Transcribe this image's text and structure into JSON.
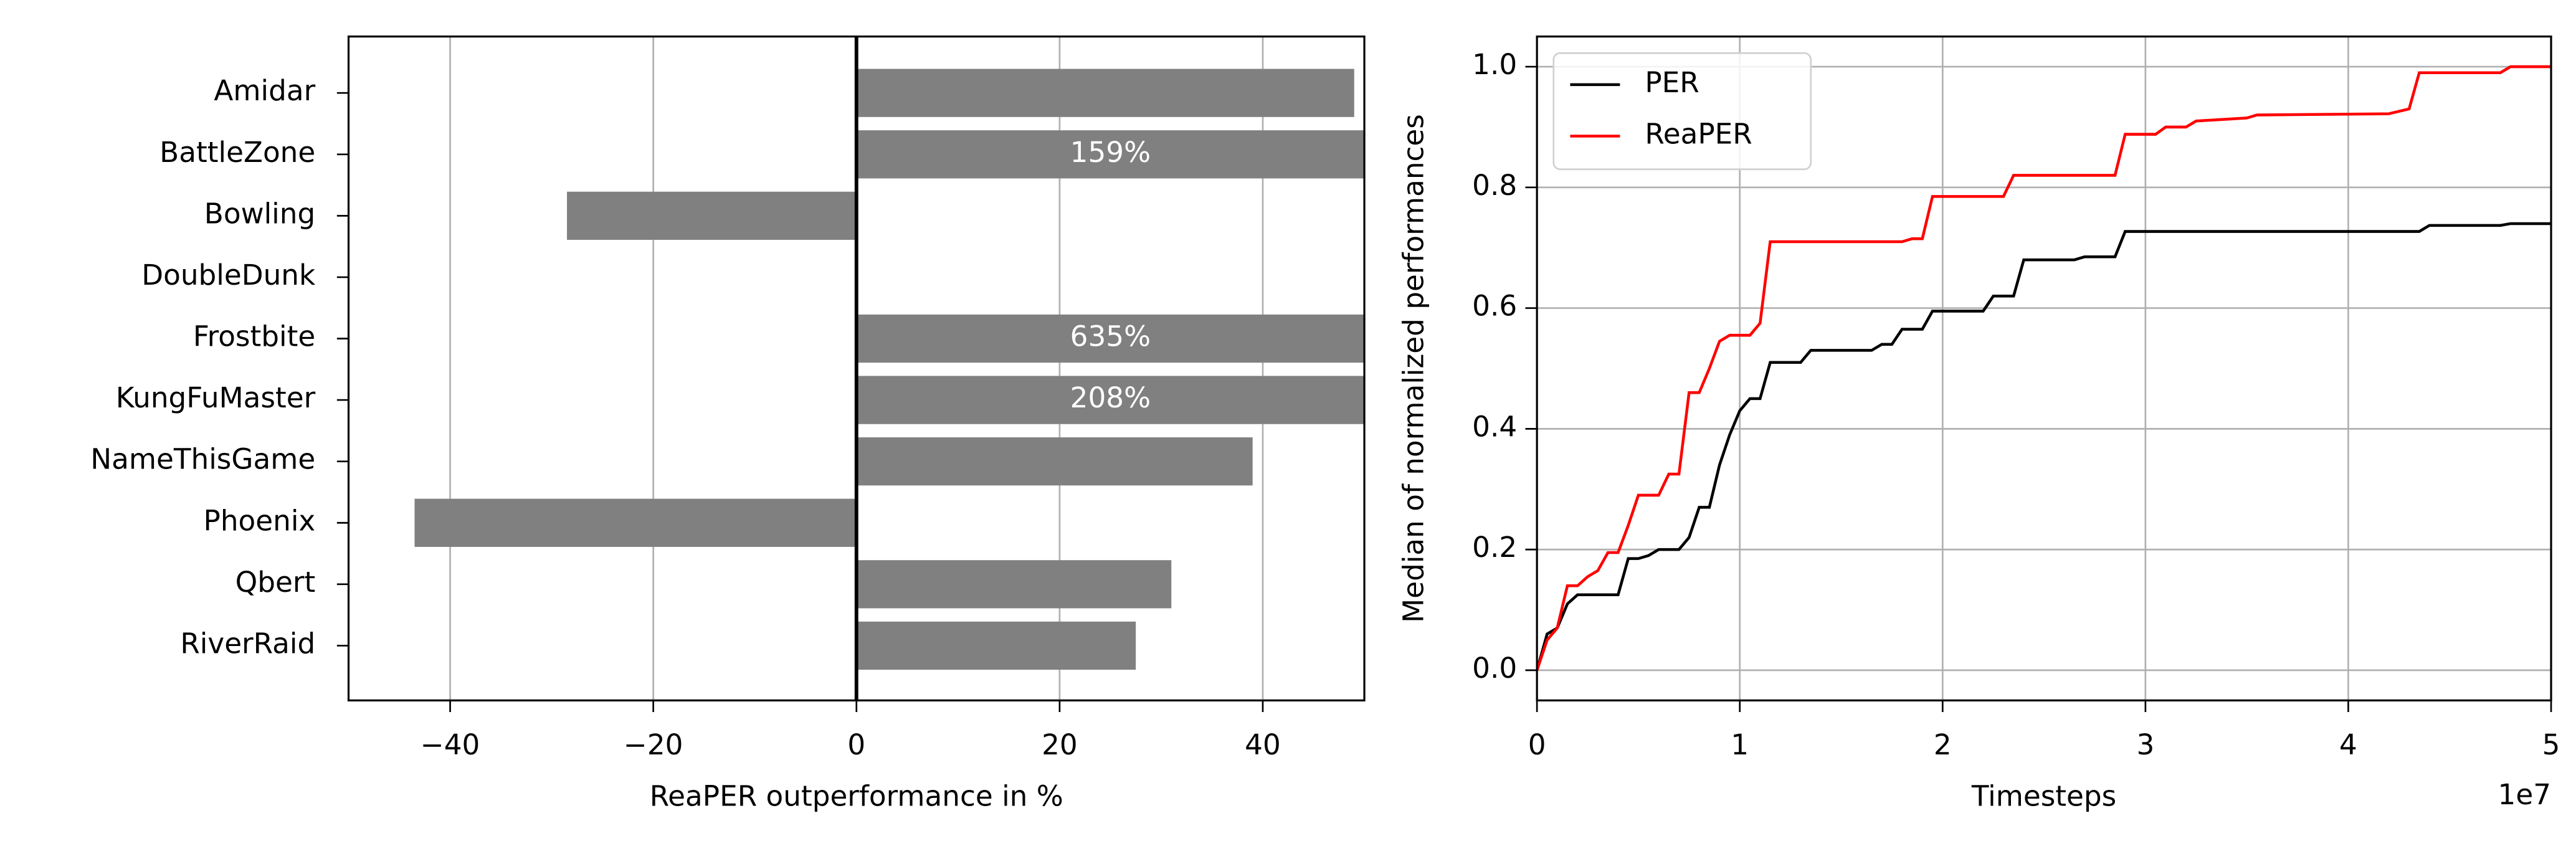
{
  "chart_data": [
    {
      "type": "barh",
      "categories": [
        "Amidar",
        "BattleZone",
        "Bowling",
        "DoubleDunk",
        "Frostbite",
        "KungFuMaster",
        "NameThisGame",
        "Phoenix",
        "Qbert",
        "RiverRaid"
      ],
      "values": [
        49,
        159,
        -28.5,
        0,
        635,
        208,
        39,
        -43.5,
        31,
        27.5
      ],
      "value_labels": [
        null,
        "159%",
        null,
        null,
        "635%",
        "208%",
        null,
        null,
        null,
        null
      ],
      "color": "#808080",
      "xlabel": "ReaPER outperformance in %",
      "xlim": [
        -50,
        50
      ],
      "xticks": [
        {
          "value": -40,
          "label": "−40"
        },
        {
          "value": -20,
          "label": "−20"
        },
        0,
        20,
        40
      ],
      "grid": true
    },
    {
      "type": "line",
      "xlabel": "Timesteps",
      "ylabel": "Median of normalized performances",
      "x_offset_label": "1e7",
      "xlim": [
        0,
        50000000
      ],
      "xticks": [
        0,
        {
          "value": 10000000,
          "label": "1"
        },
        {
          "value": 20000000,
          "label": "2"
        },
        {
          "value": 30000000,
          "label": "3"
        },
        {
          "value": 40000000,
          "label": "4"
        },
        {
          "value": 50000000,
          "label": "5"
        }
      ],
      "ylim": [
        -0.05,
        1.05
      ],
      "yticks": [
        {
          "value": 0,
          "label": "0.0"
        },
        0.2,
        0.4,
        0.6,
        0.8,
        {
          "value": 1,
          "label": "1.0"
        }
      ],
      "grid": true,
      "legend": "upper-left",
      "series": [
        {
          "name": "PER",
          "color": "#000000",
          "x": [
            0,
            500000,
            1000000,
            1500000,
            2000000,
            4000000,
            4500000,
            5000000,
            5500000,
            6000000,
            7000000,
            7500000,
            8000000,
            8500000,
            9000000,
            9500000,
            10000000,
            10500000,
            11000000,
            11500000,
            13000000,
            13500000,
            16500000,
            17000000,
            17500000,
            18000000,
            19000000,
            19500000,
            22000000,
            22500000,
            23500000,
            24000000,
            26500000,
            27000000,
            28500000,
            29000000,
            43500000,
            44000000,
            47500000,
            48000000,
            50000000
          ],
          "values": [
            0,
            0.06,
            0.07,
            0.11,
            0.125,
            0.125,
            0.185,
            0.185,
            0.19,
            0.2,
            0.2,
            0.22,
            0.27,
            0.27,
            0.34,
            0.39,
            0.43,
            0.45,
            0.45,
            0.51,
            0.51,
            0.53,
            0.53,
            0.54,
            0.54,
            0.565,
            0.565,
            0.595,
            0.595,
            0.62,
            0.62,
            0.68,
            0.68,
            0.685,
            0.685,
            0.727,
            0.727,
            0.737,
            0.737,
            0.74,
            0.74
          ]
        },
        {
          "name": "ReaPER",
          "color": "#ff0000",
          "x": [
            0,
            500000,
            1000000,
            1500000,
            2000000,
            2500000,
            3000000,
            3500000,
            4000000,
            4500000,
            5000000,
            6000000,
            6500000,
            7000000,
            7500000,
            8000000,
            8500000,
            9000000,
            9500000,
            10500000,
            11000000,
            11500000,
            18000000,
            18500000,
            19000000,
            19500000,
            23000000,
            23500000,
            28500000,
            29000000,
            30500000,
            31000000,
            32000000,
            32500000,
            35000000,
            35500000,
            42000000,
            43000000,
            43500000,
            47500000,
            48000000,
            50000000
          ],
          "values": [
            0,
            0.05,
            0.07,
            0.14,
            0.14,
            0.155,
            0.165,
            0.195,
            0.195,
            0.24,
            0.29,
            0.29,
            0.325,
            0.325,
            0.46,
            0.46,
            0.5,
            0.545,
            0.555,
            0.555,
            0.575,
            0.71,
            0.71,
            0.715,
            0.715,
            0.785,
            0.785,
            0.82,
            0.82,
            0.888,
            0.888,
            0.9,
            0.9,
            0.91,
            0.915,
            0.92,
            0.922,
            0.93,
            0.99,
            0.99,
            1.0,
            1.0
          ]
        }
      ]
    }
  ]
}
